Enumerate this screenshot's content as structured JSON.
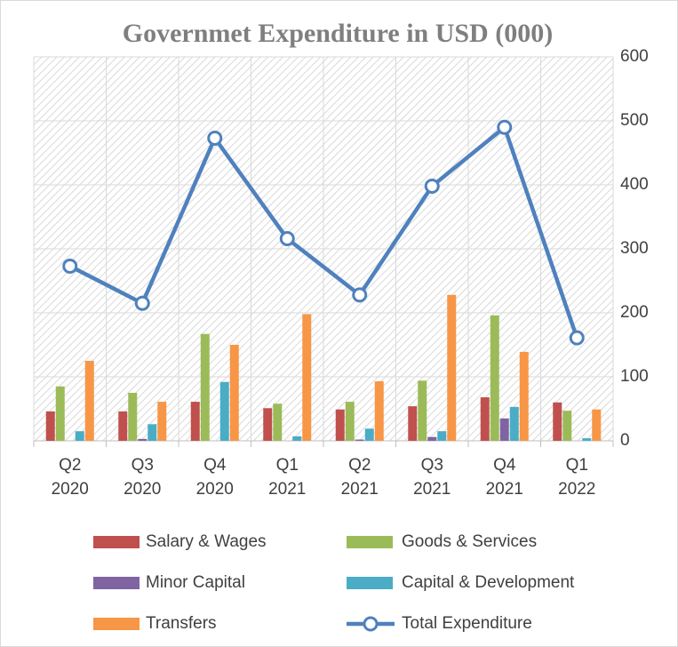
{
  "chart_data": {
    "type": "combo",
    "title": "Governmet Expenditure in USD (000)",
    "categories": [
      "Q2 2020",
      "Q3 2020",
      "Q4 2020",
      "Q1 2021",
      "Q2 2021",
      "Q3 2021",
      "Q4 2021",
      "Q1 2022"
    ],
    "series": [
      {
        "name": "Salary & Wages",
        "type": "bar",
        "color": "#c0504d",
        "values": [
          46,
          46,
          61,
          51,
          49,
          54,
          68,
          60
        ]
      },
      {
        "name": "Goods & Services",
        "type": "bar",
        "color": "#9bbb59",
        "values": [
          85,
          75,
          167,
          58,
          61,
          94,
          196,
          47
        ]
      },
      {
        "name": "Minor Capital",
        "type": "bar",
        "color": "#8064a2",
        "values": [
          0,
          3,
          0,
          0,
          2,
          6,
          35,
          0
        ]
      },
      {
        "name": "Capital & Development",
        "type": "bar",
        "color": "#4bacc6",
        "values": [
          15,
          26,
          92,
          7,
          19,
          15,
          53,
          4
        ]
      },
      {
        "name": "Transfers",
        "type": "bar",
        "color": "#f79646",
        "values": [
          125,
          61,
          150,
          198,
          93,
          228,
          139,
          49
        ]
      },
      {
        "name": "Total Expenditure",
        "type": "line",
        "color": "#4f81bd",
        "values": [
          273,
          215,
          473,
          316,
          228,
          398,
          490,
          161
        ]
      }
    ],
    "ylim": [
      0,
      600
    ],
    "yticks": [
      0,
      100,
      200,
      300,
      400,
      500,
      600
    ],
    "yaxis_side": "right",
    "grid": true,
    "legend": "bottom"
  }
}
